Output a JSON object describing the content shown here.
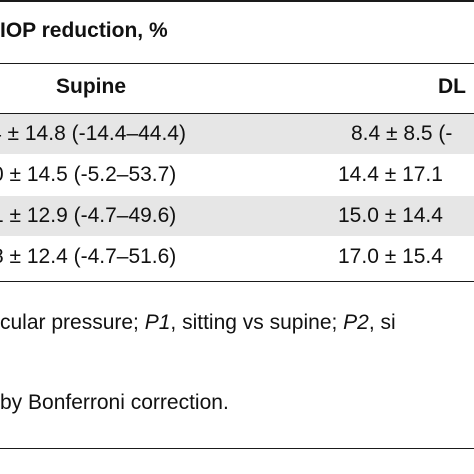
{
  "header": {
    "group_title": "IOP reduction, %",
    "col_supine": "Supine",
    "col_dl": "DL"
  },
  "rows": [
    {
      "supine": "4 ± 14.8 (-14.4–44.4)",
      "dl": "8.4 ± 8.5 (-"
    },
    {
      "supine": "0 ± 14.5 (-5.2–53.7)",
      "dl": "14.4 ± 17.1"
    },
    {
      "supine": "1 ± 12.9 (-4.7–49.6)",
      "dl": "15.0 ± 14.4"
    },
    {
      "supine": "8 ± 12.4 (-4.7–51.6)",
      "dl": "17.0 ± 15.4"
    }
  ],
  "footnotes": {
    "line1_a": "cular pressure; ",
    "line1_b": "P1",
    "line1_c": ", sitting vs supine; ",
    "line1_d": "P2",
    "line1_e": ", si",
    "line2": "by Bonferroni correction."
  }
}
